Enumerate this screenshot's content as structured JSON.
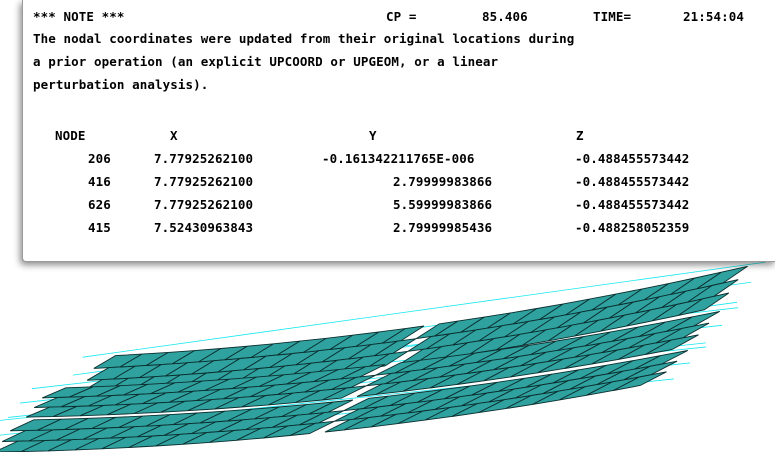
{
  "note": {
    "header": "*** NOTE ***",
    "cp_label": "CP =",
    "cp_value": "85.406",
    "time_label": "TIME=",
    "time_value": "21:54:04",
    "message_lines": [
      "The nodal coordinates were updated from their original locations during",
      "a prior operation (an explicit UPCOORD or UPGEOM, or a linear",
      "perturbation analysis)."
    ]
  },
  "table": {
    "columns": [
      "NODE",
      "X",
      "Y",
      "Z"
    ],
    "rows": [
      [
        "206",
        "7.77925262100",
        "-0.161342211765E-006",
        "-0.488455573442"
      ],
      [
        "416",
        "7.77925262100",
        "2.79999983866",
        "-0.488455573442"
      ],
      [
        "626",
        "7.77925262100",
        "5.59999983866",
        "-0.488455573442"
      ],
      [
        "415",
        "7.52430963843",
        "2.79999985436",
        "-0.488258052359"
      ]
    ]
  },
  "colors": {
    "mesh_fill": "#2fa2a0",
    "mesh_edge": "#0b2f2f",
    "line_of_sight": "#17e8ef"
  }
}
